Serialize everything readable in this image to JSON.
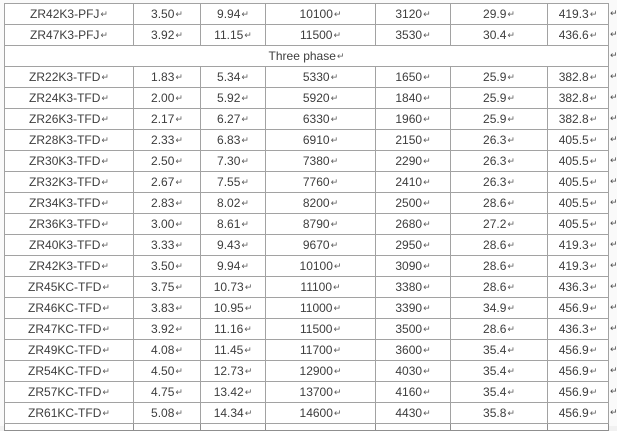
{
  "table": {
    "cell_marker": "↵",
    "columns": 7,
    "section_header": "Three phase",
    "rows": [
      {
        "type": "data",
        "cells": [
          "ZR42K3-PFJ",
          "3.50",
          "9.94",
          "10100",
          "3120",
          "29.9",
          "419.3"
        ]
      },
      {
        "type": "data",
        "cells": [
          "ZR47K3-PFJ",
          "3.92",
          "11.15",
          "11500",
          "3530",
          "30.4",
          "436.6"
        ]
      },
      {
        "type": "section",
        "label": "Three phase"
      },
      {
        "type": "data",
        "cells": [
          "ZR22K3-TFD",
          "1.83",
          "5.34",
          "5330",
          "1650",
          "25.9",
          "382.8"
        ]
      },
      {
        "type": "data",
        "cells": [
          "ZR24K3-TFD",
          "2.00",
          "5.92",
          "5920",
          "1840",
          "25.9",
          "382.8"
        ]
      },
      {
        "type": "data",
        "cells": [
          "ZR26K3-TFD",
          "2.17",
          "6.27",
          "6330",
          "1960",
          "25.9",
          "382.8"
        ]
      },
      {
        "type": "data",
        "cells": [
          "ZR28K3-TFD",
          "2.33",
          "6.83",
          "6910",
          "2150",
          "26.3",
          "405.5"
        ]
      },
      {
        "type": "data",
        "cells": [
          "ZR30K3-TFD",
          "2.50",
          "7.30",
          "7380",
          "2290",
          "26.3",
          "405.5"
        ]
      },
      {
        "type": "data",
        "cells": [
          "ZR32K3-TFD",
          "2.67",
          "7.55",
          "7760",
          "2410",
          "26.3",
          "405.5"
        ]
      },
      {
        "type": "data",
        "cells": [
          "ZR34K3-TFD",
          "2.83",
          "8.02",
          "8200",
          "2500",
          "28.6",
          "405.5"
        ]
      },
      {
        "type": "data",
        "cells": [
          "ZR36K3-TFD",
          "3.00",
          "8.61",
          "8790",
          "2680",
          "27.2",
          "405.5"
        ]
      },
      {
        "type": "data",
        "cells": [
          "ZR40K3-TFD",
          "3.33",
          "9.43",
          "9670",
          "2950",
          "28.6",
          "419.3"
        ]
      },
      {
        "type": "data",
        "cells": [
          "ZR42K3-TFD",
          "3.50",
          "9.94",
          "10100",
          "3090",
          "28.6",
          "419.3"
        ]
      },
      {
        "type": "data",
        "cells": [
          "ZR45KC-TFD",
          "3.75",
          "10.73",
          "11100",
          "3380",
          "28.6",
          "436.3"
        ]
      },
      {
        "type": "data",
        "cells": [
          "ZR46KC-TFD",
          "3.83",
          "10.95",
          "11000",
          "3390",
          "34.9",
          "456.9"
        ]
      },
      {
        "type": "data",
        "cells": [
          "ZR47KC-TFD",
          "3.92",
          "11.16",
          "11500",
          "3500",
          "28.6",
          "436.3"
        ]
      },
      {
        "type": "data",
        "cells": [
          "ZR49KC-TFD",
          "4.08",
          "11.45",
          "11700",
          "3600",
          "35.4",
          "456.9"
        ]
      },
      {
        "type": "data",
        "cells": [
          "ZR54KC-TFD",
          "4.50",
          "12.73",
          "12900",
          "4030",
          "35.4",
          "456.9"
        ]
      },
      {
        "type": "data",
        "cells": [
          "ZR57KC-TFD",
          "4.75",
          "13.42",
          "13700",
          "4160",
          "35.4",
          "456.9"
        ]
      },
      {
        "type": "data",
        "cells": [
          "ZR61KC-TFD",
          "5.08",
          "14.34",
          "14600",
          "4430",
          "35.8",
          "456.9"
        ]
      }
    ],
    "colors": {
      "border": "#a2a2a2",
      "text": "#3d3d3d",
      "cell_background": "#ffffff",
      "page_background": "#fafafa"
    }
  }
}
